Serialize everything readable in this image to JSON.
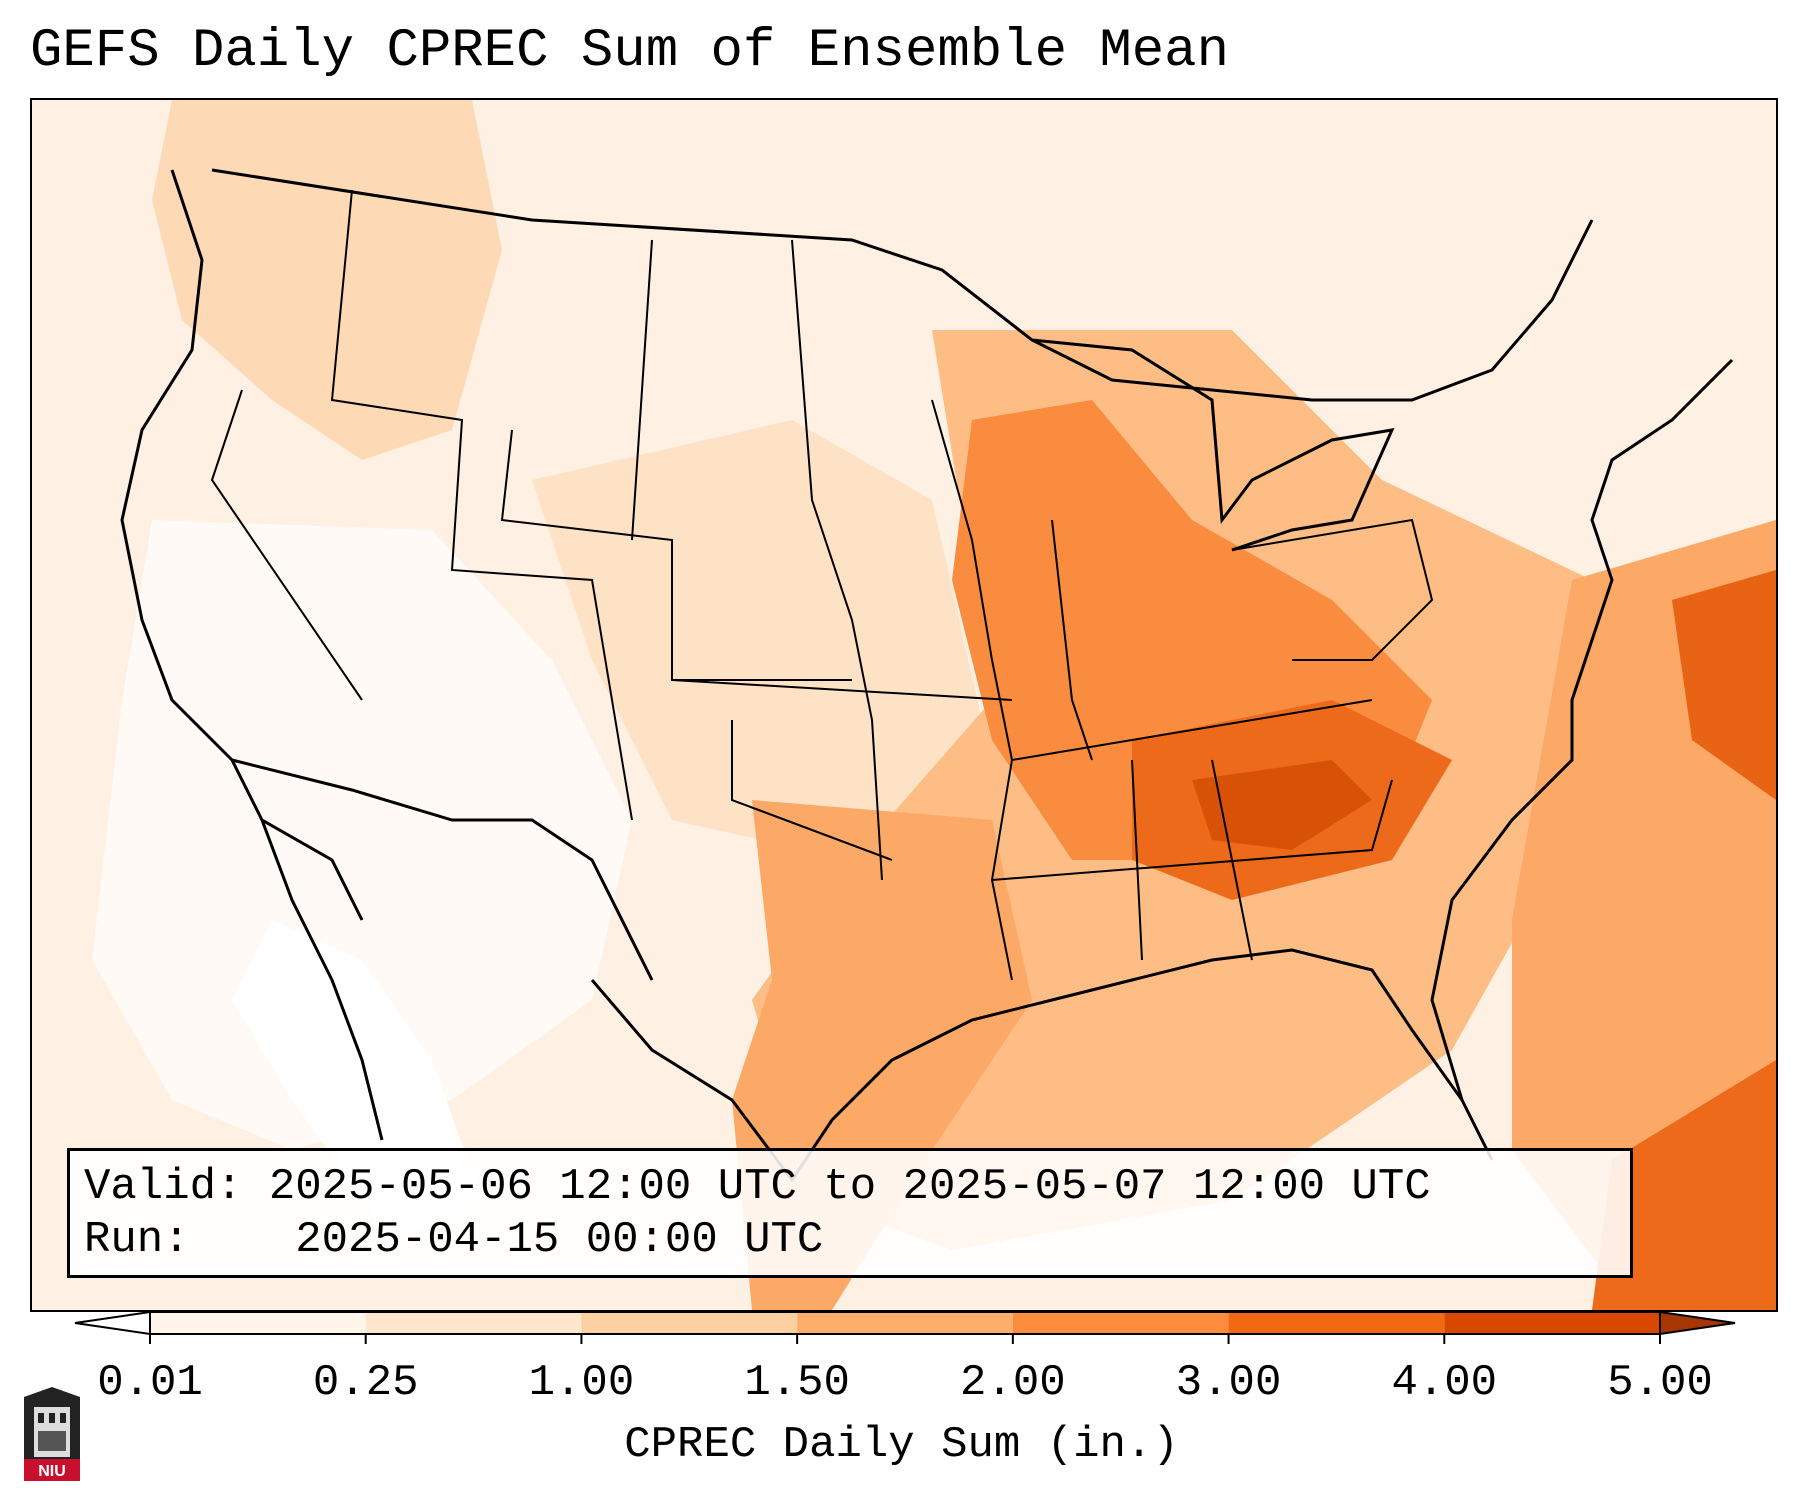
{
  "title": "GEFS Daily CPREC Sum of Ensemble Mean",
  "info": {
    "valid_label": "Valid:",
    "valid_value": "2025-05-06 12:00 UTC to 2025-05-07 12:00 UTC",
    "run_label": "Run:",
    "run_value": "2025-04-15 00:00 UTC"
  },
  "colorbar": {
    "label": "CPREC Daily Sum (in.)",
    "levels": [
      "0.01",
      "0.25",
      "1.00",
      "1.50",
      "2.00",
      "3.00",
      "4.00",
      "5.00"
    ],
    "colors": [
      "#fff5eb",
      "#fee6ce",
      "#fdd0a2",
      "#fdae6b",
      "#fd8d3c",
      "#f16913",
      "#d94801",
      "#a63603"
    ],
    "extend": "both"
  },
  "logo": {
    "text": "NIU",
    "name": "Northern Illinois University"
  },
  "map_regions": [
    {
      "name": "Pacific Northwest",
      "level": "0.25-1.00"
    },
    {
      "name": "Upper Midwest",
      "level": "1.00-1.50"
    },
    {
      "name": "Tennessee Valley",
      "level": "2.00-4.00"
    },
    {
      "name": "Southeast",
      "level": "1.50-3.00"
    },
    {
      "name": "Texas and Oklahoma",
      "level": "1.00-2.00"
    },
    {
      "name": "Western Atlantic",
      "level": "1.50-3.00"
    },
    {
      "name": "Southwest",
      "level": "0.01-0.25"
    }
  ]
}
